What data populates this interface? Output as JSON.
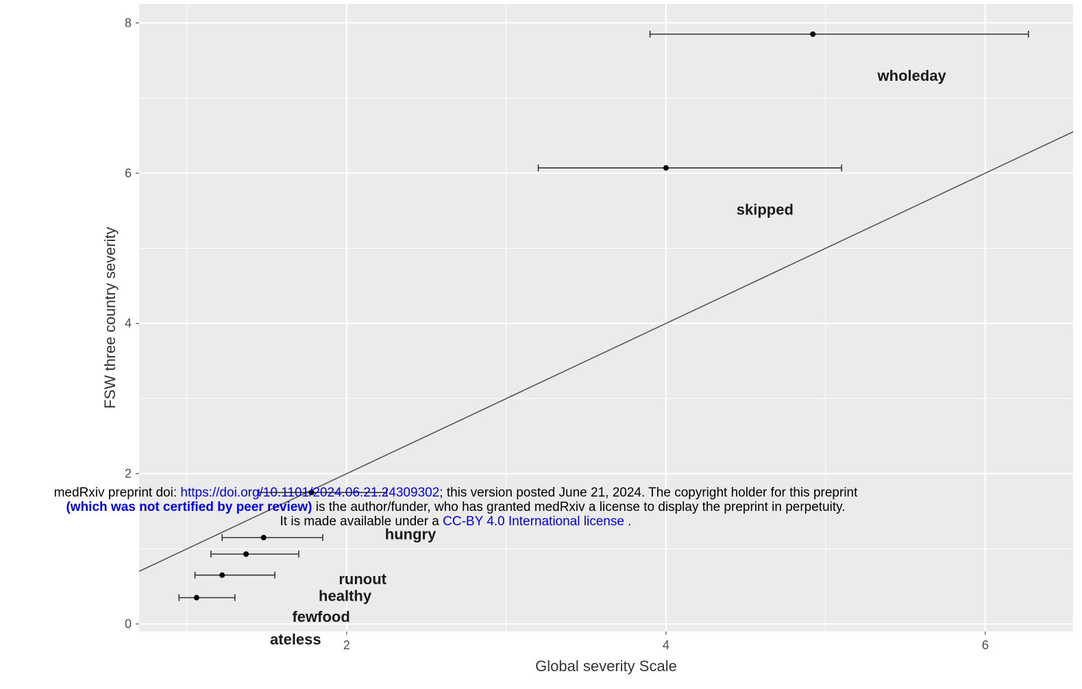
{
  "chart_data": {
    "type": "scatter",
    "xlabel": "Global severity Scale",
    "ylabel": "FSW three country severity",
    "xlim": [
      0.7,
      6.55
    ],
    "ylim": [
      -0.1,
      8.25
    ],
    "xticks": [
      2,
      4,
      6
    ],
    "yticks": [
      0,
      2,
      4,
      6,
      8
    ],
    "grid": true,
    "reference_line": {
      "slope": 1,
      "intercept": 0
    },
    "points": [
      {
        "label": "wholeday",
        "x": 4.92,
        "y": 7.85,
        "xmin": 3.9,
        "xmax": 6.27
      },
      {
        "label": "skipped",
        "x": 4.0,
        "y": 6.07,
        "xmin": 3.2,
        "xmax": 5.1
      },
      {
        "label": "hungry",
        "x": 1.78,
        "y": 1.75,
        "xmin": 1.45,
        "xmax": 2.25
      },
      {
        "label": "runout",
        "x": 1.48,
        "y": 1.15,
        "xmin": 1.22,
        "xmax": 1.85
      },
      {
        "label": "healthy",
        "x": 1.37,
        "y": 0.93,
        "xmin": 1.15,
        "xmax": 1.7
      },
      {
        "label": "fewfood",
        "x": 1.22,
        "y": 0.65,
        "xmin": 1.05,
        "xmax": 1.55
      },
      {
        "label": "ateless",
        "x": 1.06,
        "y": 0.35,
        "xmin": 0.95,
        "xmax": 1.3
      }
    ]
  },
  "notice": {
    "line1_prefix": "medRxiv preprint doi: ",
    "doi_link": "https://doi.org/10.1101/2024.06.21.24309302",
    "line1_suffix": "; this version posted June 21, 2024. The copyright holder for this preprint",
    "line2_bold": "(which was not certified by peer review)",
    "line2_suffix": " is the author/funder, who has granted medRxiv a license to display the preprint in perpetuity.",
    "line3_prefix": "It is made available under a ",
    "license_link": "CC-BY 4.0 International license",
    "line3_suffix": " ."
  }
}
